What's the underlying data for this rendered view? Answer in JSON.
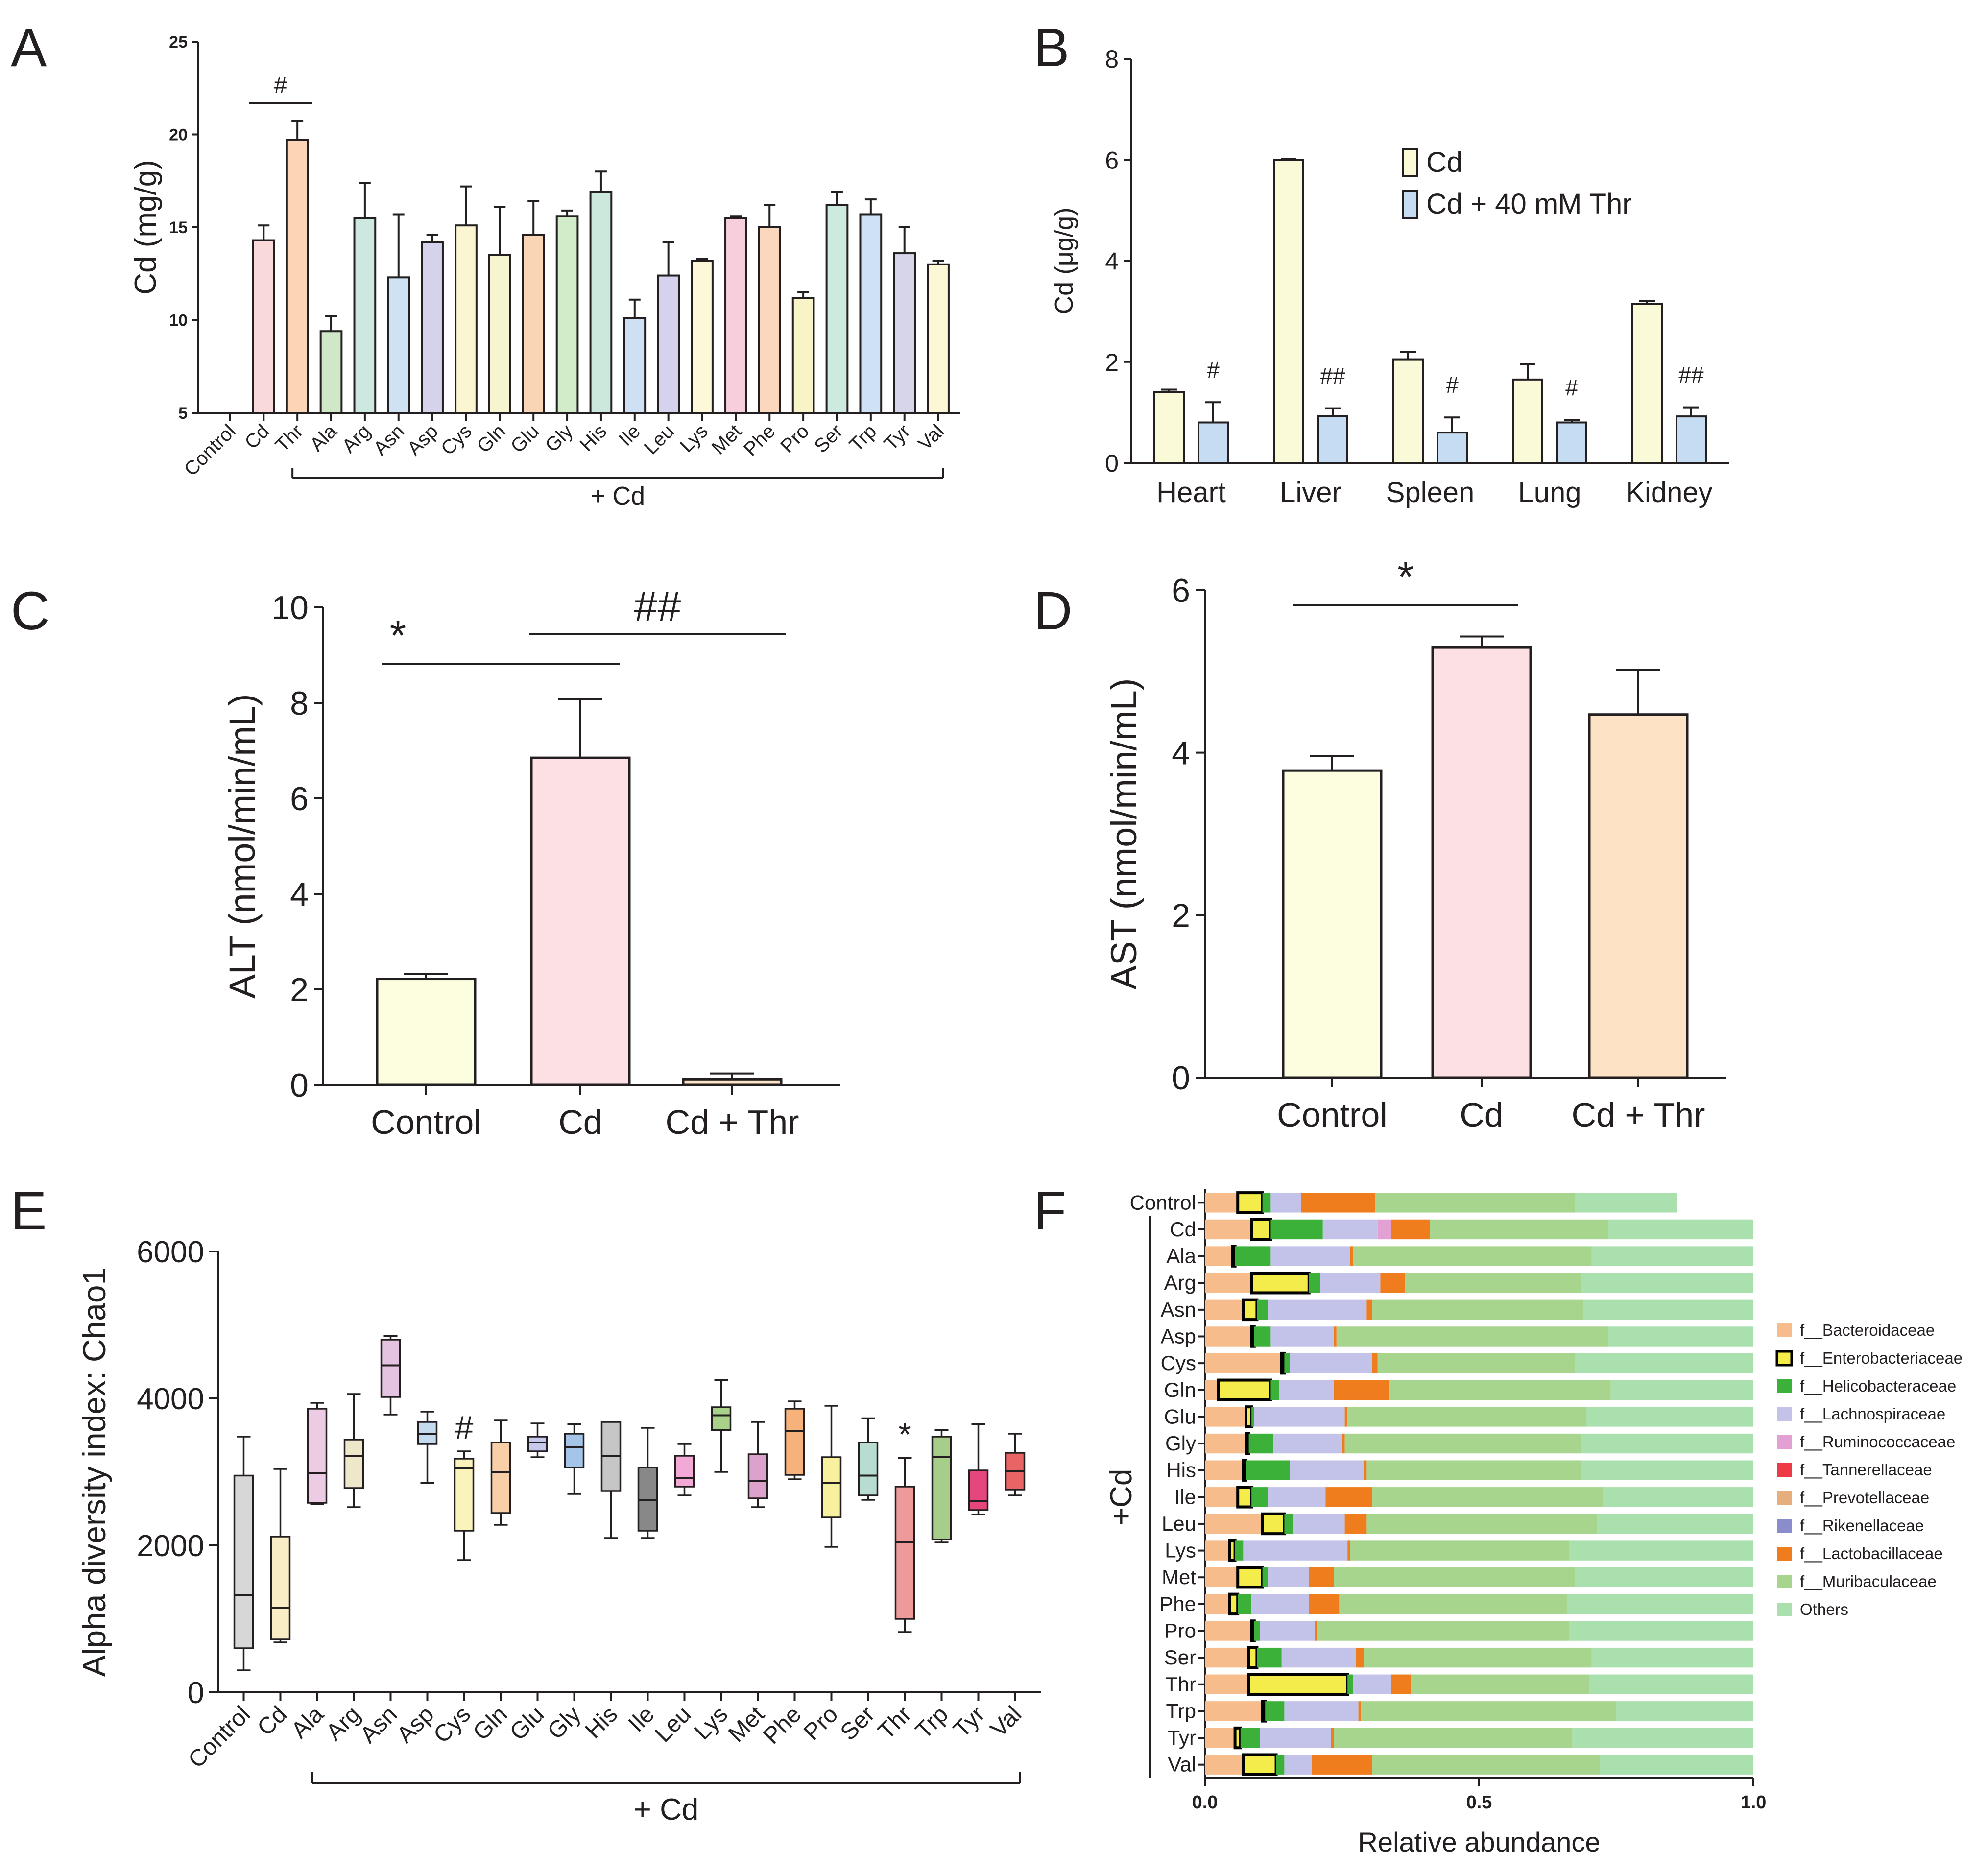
{
  "colors": {
    "aa": [
      "#f9d9d9",
      "#fbd5b5",
      "#d0e8c8",
      "#cde8e0",
      "#cfe2f3",
      "#d5d3eb",
      "#fbf5d1",
      "#f7f4d0",
      "#fad5b5",
      "#d2ebc8",
      "#cce8dc",
      "#cfe0f5",
      "#d4d2ec",
      "#fdf9d8",
      "#f7cfdc",
      "#fad7bd",
      "#f9f4c8",
      "#cdeade",
      "#cfe2f5",
      "#d7d5ea",
      "#fcf7d4"
    ],
    "box": [
      "#d7d7d7",
      "#f8edc5",
      "#eccbe3",
      "#efe7c9",
      "#e3c3df",
      "#c3daef",
      "#faf3bb",
      "#f8cfa6",
      "#c8c8ea",
      "#a4c5e7",
      "#c6c6c6",
      "#888888",
      "#f3a9d6",
      "#a8d18a",
      "#dda2cb",
      "#f6b27a",
      "#f7f19f",
      "#b9dcd2",
      "#ef9a9a",
      "#a6cd8a",
      "#e5467d",
      "#e96565"
    ],
    "tissue_cd": "#fbfad8",
    "tissue_thr": "#c6dcf3",
    "ctrl": "#fdfde0",
    "cd": "#fce0e3",
    "thr": "#fde2c5",
    "fam": [
      "#f6bc8b",
      "#f3ec4b",
      "#3cb13a",
      "#c3c3ea",
      "#e3a0d2",
      "#ee3a47",
      "#e7ae7d",
      "#8a8ccb",
      "#ef7d1e",
      "#a7d58e",
      "#aadfae"
    ]
  },
  "chart_data": [
    {
      "panel": "A",
      "type": "bar",
      "ylabel": "Cd (mg/g)",
      "ylim": [
        5,
        25
      ],
      "yticks": [
        "5",
        "10",
        "15",
        "20",
        "25"
      ],
      "categories": [
        "Control",
        "Cd",
        "Thr",
        "Ala",
        "Arg",
        "Asn",
        "Asp",
        "Cys",
        "Gln",
        "Glu",
        "Gly",
        "His",
        "Ile",
        "Leu",
        "Lys",
        "Met",
        "Phe",
        "Pro",
        "Ser",
        "Trp",
        "Tyr",
        "Val"
      ],
      "values": [
        null,
        14.3,
        19.7,
        9.4,
        15.5,
        12.3,
        14.2,
        15.1,
        13.5,
        14.6,
        15.6,
        16.9,
        10.1,
        12.4,
        13.2,
        15.5,
        15.0,
        11.2,
        16.2,
        15.7,
        13.6,
        13.0
      ],
      "errors": [
        0,
        0.8,
        1.0,
        0.8,
        1.9,
        3.4,
        0.4,
        2.1,
        2.6,
        1.8,
        0.3,
        1.1,
        1.0,
        1.8,
        0.1,
        0.1,
        1.2,
        0.3,
        0.7,
        0.8,
        1.4,
        0.2
      ],
      "group_label": "+ Cd",
      "annotations": [
        {
          "text": "#",
          "between": [
            "Cd",
            "Thr"
          ]
        }
      ]
    },
    {
      "panel": "B",
      "type": "bar",
      "ylabel": "Cd (μg/g)",
      "ylim": [
        0,
        8
      ],
      "yticks": [
        "0",
        "2",
        "4",
        "6",
        "8"
      ],
      "categories": [
        "Heart",
        "Liver",
        "Spleen",
        "Lung",
        "Kidney"
      ],
      "series": [
        {
          "name": "Cd",
          "values": [
            1.4,
            6.0,
            2.05,
            1.65,
            3.15
          ],
          "errors": [
            0.05,
            0.02,
            0.15,
            0.3,
            0.05
          ]
        },
        {
          "name": "Cd + 40 mM Thr",
          "values": [
            0.8,
            0.93,
            0.6,
            0.8,
            0.92
          ],
          "errors": [
            0.4,
            0.15,
            0.3,
            0.05,
            0.18
          ]
        }
      ],
      "annotations": [
        "#",
        "##",
        "#",
        "#",
        "##"
      ]
    },
    {
      "panel": "C",
      "type": "bar",
      "ylabel": "ALT (nmol/min/mL)",
      "ylim": [
        0,
        10
      ],
      "yticks": [
        "0",
        "2",
        "4",
        "6",
        "8",
        "10"
      ],
      "categories": [
        "Control",
        "Cd",
        "Cd + Thr"
      ],
      "values": [
        2.22,
        6.85,
        0.12
      ],
      "errors": [
        0.1,
        1.23,
        0.12
      ],
      "annotations": [
        {
          "text": "*",
          "between": [
            "Control",
            "Cd"
          ]
        },
        {
          "text": "##",
          "between": [
            "Cd",
            "Cd + Thr"
          ]
        }
      ]
    },
    {
      "panel": "D",
      "type": "bar",
      "ylabel": "AST (nmol/min/mL)",
      "ylim": [
        0,
        6
      ],
      "yticks": [
        "0",
        "2",
        "4",
        "6"
      ],
      "categories": [
        "Control",
        "Cd",
        "Cd + Thr"
      ],
      "values": [
        3.78,
        5.3,
        4.47
      ],
      "errors": [
        0.18,
        0.13,
        0.55
      ],
      "annotations": [
        {
          "text": "*",
          "between": [
            "Control",
            "Cd"
          ]
        }
      ]
    },
    {
      "panel": "E",
      "type": "box",
      "ylabel": "Alpha diversity  index: Chao1",
      "ylim": [
        0,
        6000
      ],
      "yticks": [
        "0",
        "2000",
        "4000",
        "6000"
      ],
      "categories": [
        "Control",
        "Cd",
        "Ala",
        "Arg",
        "Asn",
        "Asp",
        "Cys",
        "Gln",
        "Glu",
        "Gly",
        "His",
        "Ile",
        "Leu",
        "Lys",
        "Met",
        "Phe",
        "Pro",
        "Ser",
        "Thr",
        "Trp",
        "Tyr",
        "Val"
      ],
      "boxes": [
        [
          300,
          600,
          1320,
          2950,
          3480
        ],
        [
          680,
          720,
          1150,
          2120,
          3040
        ],
        [
          2560,
          2580,
          2980,
          3860,
          3940
        ],
        [
          2520,
          2780,
          3220,
          3440,
          4060
        ],
        [
          3780,
          4020,
          4450,
          4800,
          4850
        ],
        [
          2850,
          3380,
          3520,
          3680,
          3820
        ],
        [
          1800,
          2200,
          3050,
          3180,
          3280
        ],
        [
          2280,
          2440,
          3000,
          3400,
          3700
        ],
        [
          3200,
          3280,
          3400,
          3480,
          3660
        ],
        [
          2700,
          3060,
          3340,
          3520,
          3650
        ],
        [
          2100,
          2740,
          3220,
          3680,
          3680
        ],
        [
          2100,
          2200,
          2620,
          3060,
          3600
        ],
        [
          2680,
          2800,
          2920,
          3220,
          3380
        ],
        [
          3000,
          3570,
          3770,
          3880,
          4250
        ],
        [
          2520,
          2640,
          2880,
          3240,
          3680
        ],
        [
          2900,
          2960,
          3560,
          3860,
          3960
        ],
        [
          1980,
          2380,
          2850,
          3200,
          3900
        ],
        [
          2620,
          2680,
          2950,
          3400,
          3730
        ],
        [
          820,
          1000,
          2040,
          2800,
          3190
        ],
        [
          2040,
          2080,
          3200,
          3480,
          3570
        ],
        [
          2420,
          2480,
          2600,
          3020,
          3650
        ],
        [
          2680,
          2760,
          3010,
          3260,
          3520
        ]
      ],
      "group_label": "+ Cd",
      "annotations": [
        {
          "text": "#",
          "at": "Cys"
        },
        {
          "text": "*",
          "at": "Thr"
        }
      ]
    },
    {
      "panel": "F",
      "type": "stacked-bar",
      "xlabel": "Relative abundance",
      "xlim": [
        0,
        1
      ],
      "xticks": [
        "0.0",
        "0.5",
        "1.0"
      ],
      "group_label": "+Cd",
      "categories": [
        "Control",
        "Cd",
        "Ala",
        "Arg",
        "Asn",
        "Asp",
        "Cys",
        "Gln",
        "Glu",
        "Gly",
        "His",
        "Ile",
        "Leu",
        "Lys",
        "Met",
        "Phe",
        "Pro",
        "Ser",
        "Thr",
        "Trp",
        "Tyr",
        "Val"
      ],
      "families": [
        "f__Bacteroidaceae",
        "f__Enterobacteriaceae",
        "f__Helicobacteraceae",
        "f__Lachnospiraceae",
        "f__Ruminococcaceae",
        "f__Tannerellaceae",
        "f__Prevotellaceae",
        "f__Rikenellaceae",
        "f__Lactobacillaceae",
        "f__Muribaculaceae",
        "Others"
      ],
      "values": [
        [
          0.06,
          0.045,
          0.015,
          0.055,
          0,
          0,
          0,
          0,
          0.135,
          0.365,
          0.185
        ],
        [
          0.085,
          0.035,
          0.095,
          0.1,
          0.025,
          0,
          0,
          0,
          0.07,
          0.325,
          0.265
        ],
        [
          0.05,
          0.005,
          0.065,
          0.145,
          0,
          0,
          0,
          0,
          0.005,
          0.435,
          0.295
        ],
        [
          0.085,
          0.105,
          0.02,
          0.11,
          0,
          0,
          0,
          0,
          0.045,
          0.32,
          0.315
        ],
        [
          0.07,
          0.025,
          0.02,
          0.18,
          0,
          0,
          0,
          0,
          0.01,
          0.385,
          0.31
        ],
        [
          0.085,
          0.005,
          0.03,
          0.115,
          0,
          0,
          0,
          0,
          0.005,
          0.495,
          0.265
        ],
        [
          0.14,
          0.005,
          0.01,
          0.15,
          0,
          0,
          0,
          0,
          0.01,
          0.36,
          0.325
        ],
        [
          0.025,
          0.095,
          0.015,
          0.1,
          0,
          0,
          0,
          0,
          0.1,
          0.405,
          0.26
        ],
        [
          0.075,
          0.01,
          0.005,
          0.165,
          0,
          0,
          0,
          0,
          0.005,
          0.435,
          0.305
        ],
        [
          0.075,
          0.005,
          0.045,
          0.125,
          0,
          0,
          0,
          0,
          0.005,
          0.43,
          0.315
        ],
        [
          0.07,
          0.005,
          0.08,
          0.135,
          0,
          0,
          0,
          0,
          0.005,
          0.39,
          0.315
        ],
        [
          0.06,
          0.025,
          0.03,
          0.105,
          0,
          0,
          0,
          0,
          0.085,
          0.42,
          0.275
        ],
        [
          0.105,
          0.04,
          0.015,
          0.095,
          0,
          0,
          0,
          0,
          0.04,
          0.42,
          0.285
        ],
        [
          0.045,
          0.01,
          0.015,
          0.19,
          0,
          0,
          0,
          0,
          0.005,
          0.4,
          0.335
        ],
        [
          0.06,
          0.045,
          0.01,
          0.075,
          0,
          0,
          0,
          0,
          0.045,
          0.44,
          0.325
        ],
        [
          0.045,
          0.015,
          0.025,
          0.105,
          0,
          0,
          0,
          0,
          0.055,
          0.415,
          0.34
        ],
        [
          0.085,
          0.005,
          0.01,
          0.1,
          0,
          0,
          0,
          0,
          0.005,
          0.46,
          0.335
        ],
        [
          0.08,
          0.015,
          0.045,
          0.135,
          0,
          0,
          0,
          0,
          0.015,
          0.415,
          0.295
        ],
        [
          0.08,
          0.18,
          0.01,
          0.07,
          0,
          0,
          0,
          0,
          0.035,
          0.325,
          0.3
        ],
        [
          0.105,
          0.005,
          0.035,
          0.135,
          0,
          0,
          0,
          0,
          0.005,
          0.465,
          0.25
        ],
        [
          0.055,
          0.01,
          0.035,
          0.13,
          0,
          0,
          0,
          0,
          0.005,
          0.435,
          0.33
        ],
        [
          0.07,
          0.06,
          0.015,
          0.05,
          0,
          0,
          0,
          0,
          0.11,
          0.415,
          0.28
        ]
      ]
    }
  ],
  "panel_labels": [
    "A",
    "B",
    "C",
    "D",
    "E",
    "F"
  ]
}
